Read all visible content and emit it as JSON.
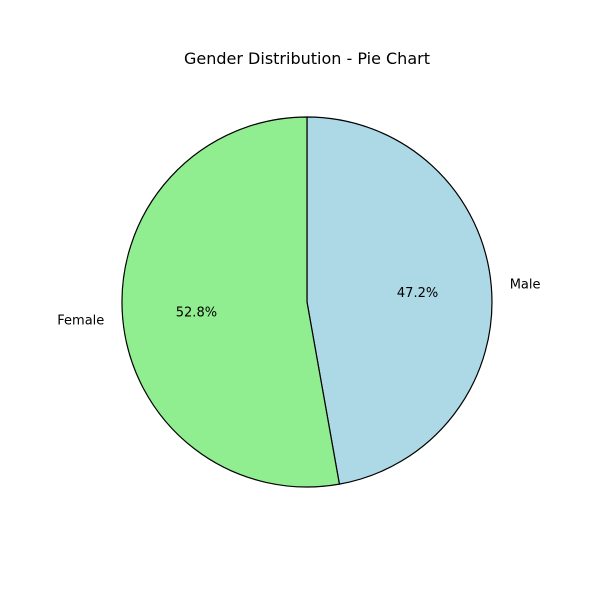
{
  "chart_data": {
    "type": "pie",
    "title": "Gender Distribution - Pie Chart",
    "categories": [
      "Male",
      "Female"
    ],
    "values": [
      47.2,
      52.8
    ],
    "labels": [
      "Male",
      "Female"
    ],
    "percent_labels": [
      "47.2%",
      "52.8%"
    ],
    "colors": [
      "#add8e6",
      "#90ee90"
    ],
    "edge_color": "#000000",
    "start_angle_deg": 90,
    "direction": "clockwise"
  }
}
